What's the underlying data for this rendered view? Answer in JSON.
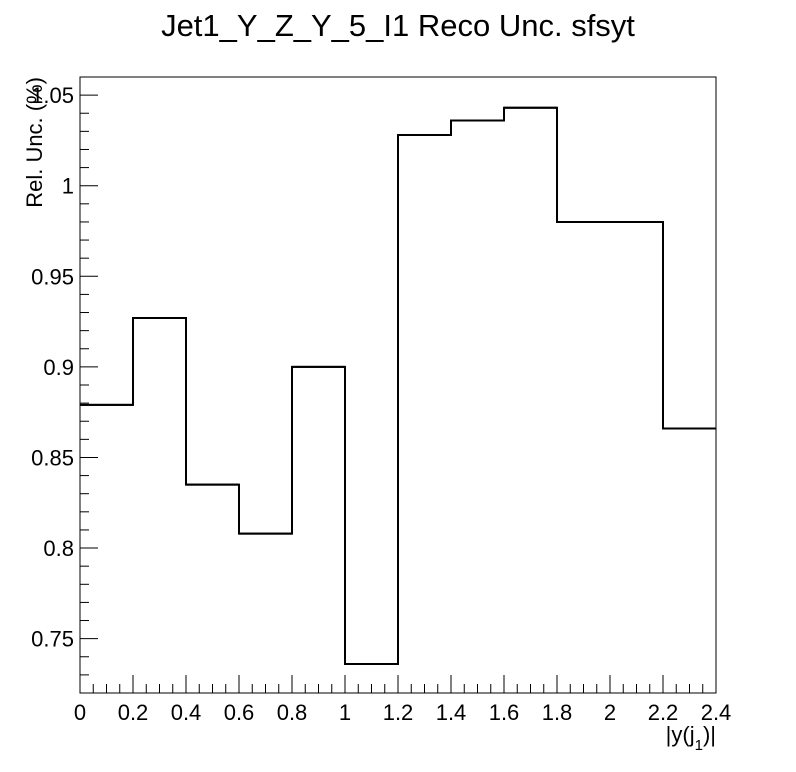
{
  "chart_data": {
    "type": "step",
    "title": "Jet1_Y_Z_Y_5_I1 Reco Unc. sfsyt",
    "xlabel": "|y(j",
    "xlabel_subscript": "1",
    "xlabel_suffix": ")|",
    "ylabel": "Rel. Unc. (%)",
    "xlim": [
      0,
      2.4
    ],
    "ylim": [
      0.72,
      1.06
    ],
    "x_ticks": [
      0,
      0.2,
      0.4,
      0.6,
      0.8,
      1,
      1.2,
      1.4,
      1.6,
      1.8,
      2,
      2.2,
      2.4
    ],
    "x_tick_labels": [
      "0",
      "0.2",
      "0.4",
      "0.6",
      "0.8",
      "1",
      "1.2",
      "1.4",
      "1.6",
      "1.8",
      "2",
      "2.2",
      "2.4"
    ],
    "y_ticks": [
      0.75,
      0.8,
      0.85,
      0.9,
      0.95,
      1,
      1.05
    ],
    "y_tick_labels": [
      "0.75",
      "0.8",
      "0.85",
      "0.9",
      "0.95",
      "1",
      "1.05"
    ],
    "bin_edges": [
      0,
      0.2,
      0.4,
      0.6,
      0.8,
      1.0,
      1.2,
      1.4,
      1.6,
      1.8,
      2.2,
      2.4
    ],
    "values": [
      0.879,
      0.927,
      0.835,
      0.808,
      0.9,
      0.736,
      1.028,
      1.036,
      1.043,
      0.98,
      0.866
    ],
    "line_color": "#000000",
    "grid": false,
    "legend": "none"
  }
}
